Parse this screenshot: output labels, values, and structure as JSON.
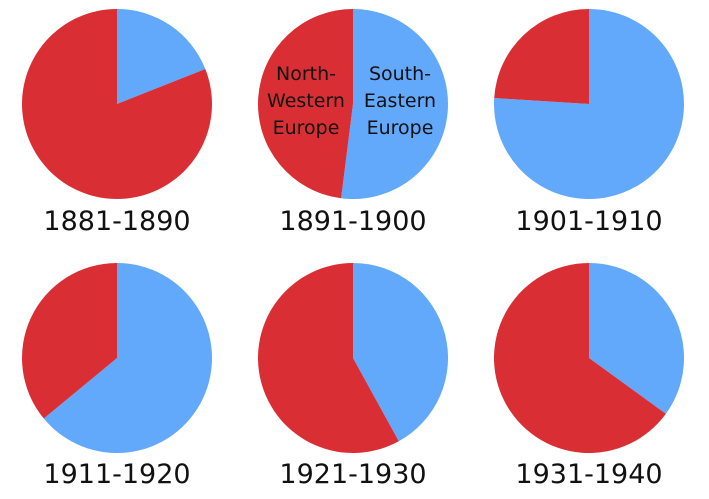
{
  "chart_data": [
    {
      "type": "pie",
      "title": "1881-1890",
      "slices": [
        {
          "category": "South-Eastern Europe",
          "value": 19
        },
        {
          "category": "North-Western Europe",
          "value": 81
        }
      ]
    },
    {
      "type": "pie",
      "title": "1891-1900",
      "inline_labels": [
        "North-\nWestern\nEurope",
        "South-\nEastern\nEurope"
      ],
      "slices": [
        {
          "category": "South-Eastern Europe",
          "value": 52
        },
        {
          "category": "North-Western Europe",
          "value": 48
        }
      ]
    },
    {
      "type": "pie",
      "title": "1901-1910",
      "slices": [
        {
          "category": "South-Eastern Europe",
          "value": 76
        },
        {
          "category": "North-Western Europe",
          "value": 24
        }
      ]
    },
    {
      "type": "pie",
      "title": "1911-1920",
      "slices": [
        {
          "category": "South-Eastern Europe",
          "value": 64
        },
        {
          "category": "North-Western Europe",
          "value": 36
        }
      ]
    },
    {
      "type": "pie",
      "title": "1921-1930",
      "slices": [
        {
          "category": "South-Eastern Europe",
          "value": 42
        },
        {
          "category": "North-Western Europe",
          "value": 58
        }
      ]
    },
    {
      "type": "pie",
      "title": "1931-1940",
      "slices": [
        {
          "category": "South-Eastern Europe",
          "value": 35
        },
        {
          "category": "North-Western Europe",
          "value": 65
        }
      ]
    }
  ],
  "colors": {
    "South-Eastern Europe": "#62a8fb",
    "North-Western Europe": "#da2e35"
  }
}
